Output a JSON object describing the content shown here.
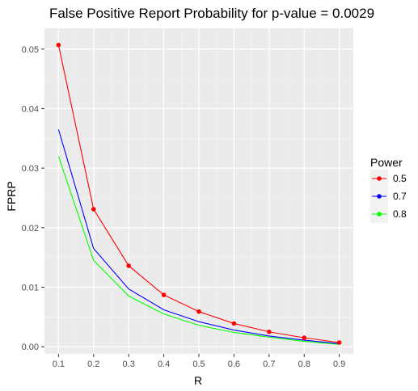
{
  "chart_data": {
    "type": "line",
    "title": "False Positive Report Probability for p-value = 0.0029",
    "xlabel": "R",
    "ylabel": "FPRP",
    "x": [
      0.1,
      0.2,
      0.3,
      0.4,
      0.5,
      0.6,
      0.7,
      0.8,
      0.9
    ],
    "x_tick_labels": [
      "0.1",
      "0.2",
      "0.3",
      "0.4",
      "0.5",
      "0.6",
      "0.7",
      "0.8",
      "0.9"
    ],
    "y_ticks": [
      0.0,
      0.01,
      0.02,
      0.03,
      0.04,
      0.05
    ],
    "y_tick_labels": [
      "0.00",
      "0.01",
      "0.02",
      "0.03",
      "0.04",
      "0.05"
    ],
    "xlim": [
      0.06,
      0.94
    ],
    "ylim": [
      -0.0012,
      0.0535
    ],
    "grid": true,
    "legend": {
      "title": "Power",
      "placement": "right",
      "entries": [
        "0.5",
        "0.7",
        "0.8"
      ]
    },
    "series": [
      {
        "name": "0.5",
        "color": "#ff0000",
        "markers": true,
        "values": [
          0.0507,
          0.0231,
          0.0136,
          0.0087,
          0.0059,
          0.0039,
          0.0025,
          0.0015,
          0.0007
        ]
      },
      {
        "name": "0.7",
        "color": "#0000ff",
        "markers": false,
        "values": [
          0.0365,
          0.0165,
          0.0097,
          0.0062,
          0.0042,
          0.0028,
          0.0018,
          0.0011,
          0.0005
        ]
      },
      {
        "name": "0.8",
        "color": "#00ff00",
        "markers": false,
        "values": [
          0.032,
          0.0145,
          0.0085,
          0.0055,
          0.0036,
          0.0024,
          0.0016,
          0.0009,
          0.0004
        ]
      }
    ]
  }
}
